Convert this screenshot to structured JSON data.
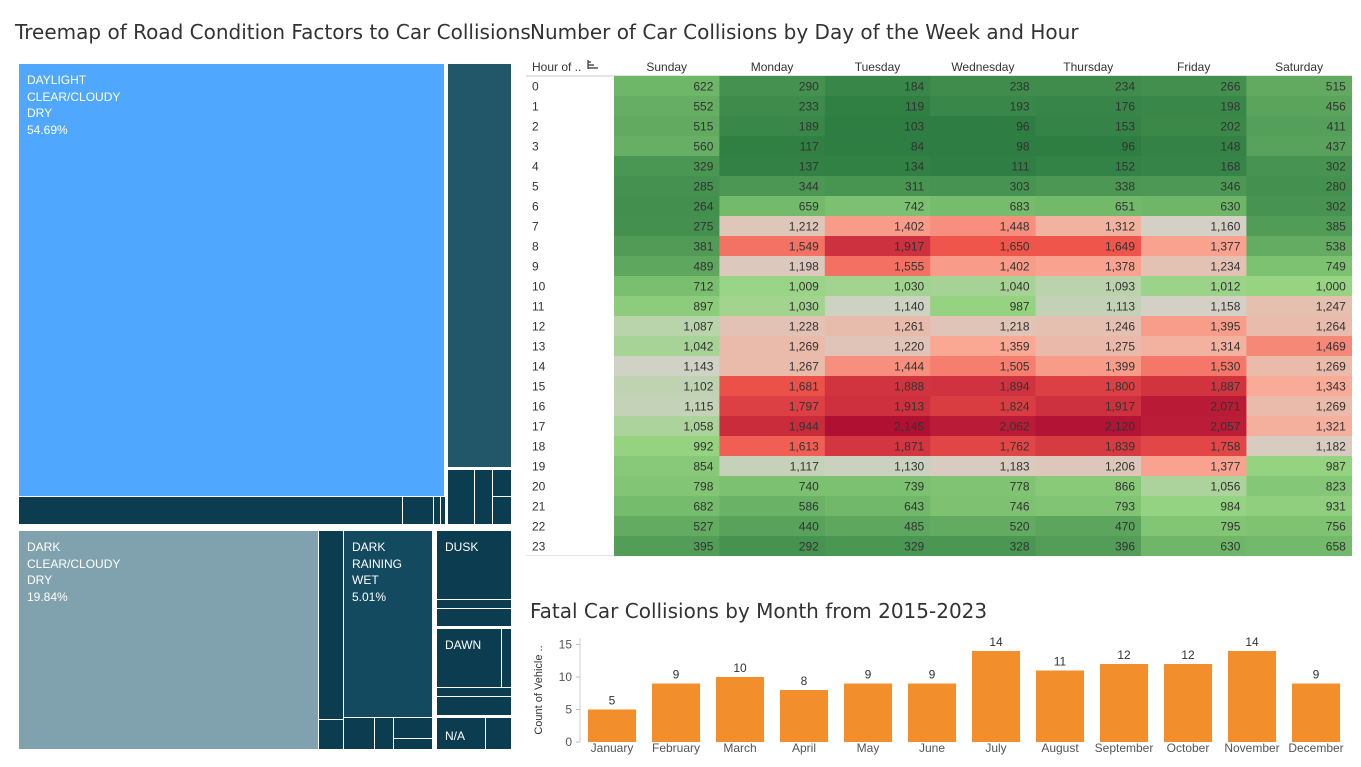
{
  "titles": {
    "treemap": "Treemap of Road Condition Factors to Car Collisions",
    "heatmap": "Number of Car Collisions by Day of the Week and Hour",
    "bar": "Fatal Car Collisions by Month from 2015-2023"
  },
  "treemap": {
    "labels": {
      "daylight_clear_dry": [
        "DAYLIGHT",
        "CLEAR/CLOUDY",
        "DRY",
        "54.69%"
      ],
      "dark_clear_dry": [
        "DARK",
        "CLEAR/CLOUDY",
        "DRY",
        "19.84%"
      ],
      "dark_raining_wet": [
        "DARK",
        "RAINING",
        "WET",
        "5.01%"
      ],
      "dusk": [
        "DUSK"
      ],
      "dawn": [
        "DAWN"
      ],
      "na": [
        "N/A"
      ]
    },
    "colors": {
      "daylight": "#4fa8fd",
      "dark_clear": "#80a2ae",
      "dark_slate": "#225669",
      "dark_navy": "#0b3c4f",
      "mid_navy": "#134a5f"
    }
  },
  "chart_data": [
    {
      "type": "heatmap",
      "title": "Number of Car Collisions by Day of the Week and Hour",
      "row_header": "Hour of ..",
      "columns": [
        "Sunday",
        "Monday",
        "Tuesday",
        "Wednesday",
        "Thursday",
        "Friday",
        "Saturday"
      ],
      "rows": [
        "0",
        "1",
        "2",
        "3",
        "4",
        "5",
        "6",
        "7",
        "8",
        "9",
        "10",
        "11",
        "12",
        "13",
        "14",
        "15",
        "16",
        "17",
        "18",
        "19",
        "20",
        "21",
        "22",
        "23"
      ],
      "values": [
        [
          622,
          290,
          184,
          238,
          234,
          266,
          515
        ],
        [
          552,
          233,
          119,
          193,
          176,
          198,
          456
        ],
        [
          515,
          189,
          103,
          96,
          153,
          202,
          411
        ],
        [
          560,
          117,
          84,
          98,
          96,
          148,
          437
        ],
        [
          329,
          137,
          134,
          111,
          152,
          168,
          302
        ],
        [
          285,
          344,
          311,
          303,
          338,
          346,
          280
        ],
        [
          264,
          659,
          742,
          683,
          651,
          630,
          302
        ],
        [
          275,
          1212,
          1402,
          1448,
          1312,
          1160,
          385
        ],
        [
          381,
          1549,
          1917,
          1650,
          1649,
          1377,
          538
        ],
        [
          489,
          1198,
          1555,
          1402,
          1378,
          1234,
          749
        ],
        [
          712,
          1009,
          1030,
          1040,
          1093,
          1012,
          1000
        ],
        [
          897,
          1030,
          1140,
          987,
          1113,
          1158,
          1247
        ],
        [
          1087,
          1228,
          1261,
          1218,
          1246,
          1395,
          1264
        ],
        [
          1042,
          1269,
          1220,
          1359,
          1275,
          1314,
          1469
        ],
        [
          1143,
          1267,
          1444,
          1505,
          1399,
          1530,
          1269
        ],
        [
          1102,
          1681,
          1888,
          1894,
          1800,
          1887,
          1343
        ],
        [
          1115,
          1797,
          1913,
          1824,
          1917,
          2071,
          1269
        ],
        [
          1058,
          1944,
          2145,
          2062,
          2120,
          2057,
          1321
        ],
        [
          992,
          1613,
          1871,
          1762,
          1839,
          1758,
          1182
        ],
        [
          854,
          1117,
          1130,
          1183,
          1206,
          1377,
          987
        ],
        [
          798,
          740,
          739,
          778,
          866,
          1056,
          823
        ],
        [
          682,
          586,
          643,
          746,
          793,
          984,
          931
        ],
        [
          527,
          440,
          485,
          520,
          470,
          795,
          756
        ],
        [
          395,
          292,
          329,
          328,
          396,
          630,
          658
        ]
      ]
    },
    {
      "type": "bar",
      "title": "Fatal Car Collisions by Month from 2015-2023",
      "categories": [
        "January",
        "February",
        "March",
        "April",
        "May",
        "June",
        "July",
        "August",
        "September",
        "October",
        "November",
        "December"
      ],
      "values": [
        5,
        9,
        10,
        8,
        9,
        9,
        14,
        11,
        12,
        12,
        14,
        9
      ],
      "ylabel": "Count of Vehicle ..",
      "ylim": [
        0,
        16
      ],
      "yticks": [
        0,
        5,
        10,
        15
      ],
      "color": "#f28e2b"
    }
  ]
}
